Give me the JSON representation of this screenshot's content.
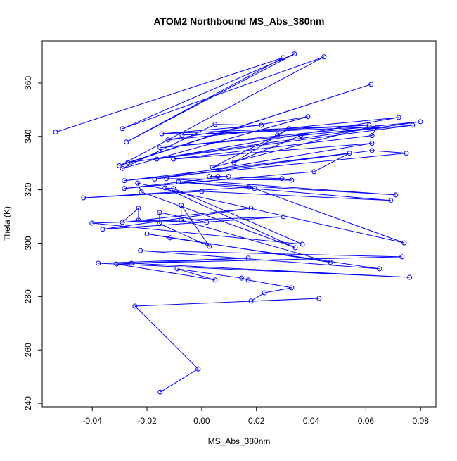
{
  "chart_data": {
    "type": "line-points",
    "title": "ATOM2 Northbound MS_Abs_380nm",
    "x_label": "MS_Abs_380nm",
    "y_label": "Theta (K)",
    "color": "#0000ff",
    "xlim": [
      -0.0583,
      0.0856
    ],
    "ylim": [
      238.7,
      375.8
    ],
    "xticks": [
      -0.04,
      -0.02,
      {
        "value": 0,
        "label": "0.00"
      },
      0.02,
      0.04,
      0.06,
      0.08
    ],
    "yticks": [
      240,
      260,
      280,
      300,
      320,
      340,
      360
    ],
    "x": [
      -0.0534,
      0.0298,
      -0.0275,
      0.0339,
      -0.029,
      0.0447,
      -0.0301,
      0.0619,
      -0.027,
      0.0799,
      -0.0152,
      0.0771,
      -0.0164,
      0.072,
      -0.0123,
      0.0388,
      -0.029,
      0.0049,
      0.0218,
      -0.0146,
      0.0612,
      -0.0072,
      0.0612,
      0.0039,
      0.0277,
      0.0319,
      0.0118,
      0.0362,
      0.064,
      0.0622,
      -0.0103,
      0.0622,
      -0.0172,
      0.0622,
      0.0748,
      -0.0283,
      0.054,
      0.0411,
      -0.0283,
      0.0098,
      0.0059,
      0.0028,
      0.0293,
      0.0329,
      -0.0129,
      0.0709,
      -0.0085,
      0.0691,
      0.0,
      -0.0432,
      0.0172,
      0.0193,
      0.074,
      -0.0234,
      -0.0221,
      0.0342,
      -0.0134,
      -0.0103,
      0.0368,
      -0.0401,
      0.0298,
      -0.0362,
      0.018,
      -0.029,
      -0.0231,
      -0.0231,
      0.0018,
      -0.0154,
      -0.0154,
      0.0028,
      -0.0075,
      -0.0075,
      0.047,
      -0.02,
      -0.0116,
      0.065,
      -0.0224,
      0.0732,
      -0.0257,
      0.076,
      -0.0378,
      0.017,
      -0.0311,
      0.0049,
      -0.009,
      0.0146,
      0.017,
      0.0329,
      0.0229,
      0.018,
      0.0429,
      -0.0244,
      -0.0013,
      -0.0152
    ],
    "y": [
      341.6,
      369.5,
      337.9,
      370.9,
      342.9,
      369.8,
      329,
      359.5,
      330.2,
      345.5,
      335.8,
      344.2,
      331.5,
      347.1,
      338.7,
      347.4,
      328,
      344.5,
      344.2,
      341,
      344.2,
      340.5,
      343.5,
      328.4,
      340.5,
      342.9,
      330.2,
      340.3,
      343.4,
      340.3,
      331.5,
      337.4,
      324,
      334.7,
      333.7,
      323.4,
      333.7,
      326.8,
      320.5,
      325,
      325,
      325,
      324.2,
      323.6,
      324.2,
      318.1,
      322.9,
      316,
      319.4,
      317,
      321,
      320.5,
      300.1,
      322.5,
      319.2,
      298.3,
      320.7,
      320.5,
      299.6,
      307.5,
      309.9,
      305.2,
      313.1,
      307.8,
      313.1,
      308.6,
      307.8,
      311.5,
      307.3,
      298.8,
      314.2,
      308.6,
      292.8,
      303.5,
      302,
      290.4,
      297.2,
      294.9,
      292.5,
      287.2,
      292.5,
      294.4,
      292.2,
      286.2,
      290.4,
      286.9,
      286.2,
      283.3,
      281.4,
      278.3,
      279.3,
      276.4,
      252.9,
      244.2
    ]
  }
}
